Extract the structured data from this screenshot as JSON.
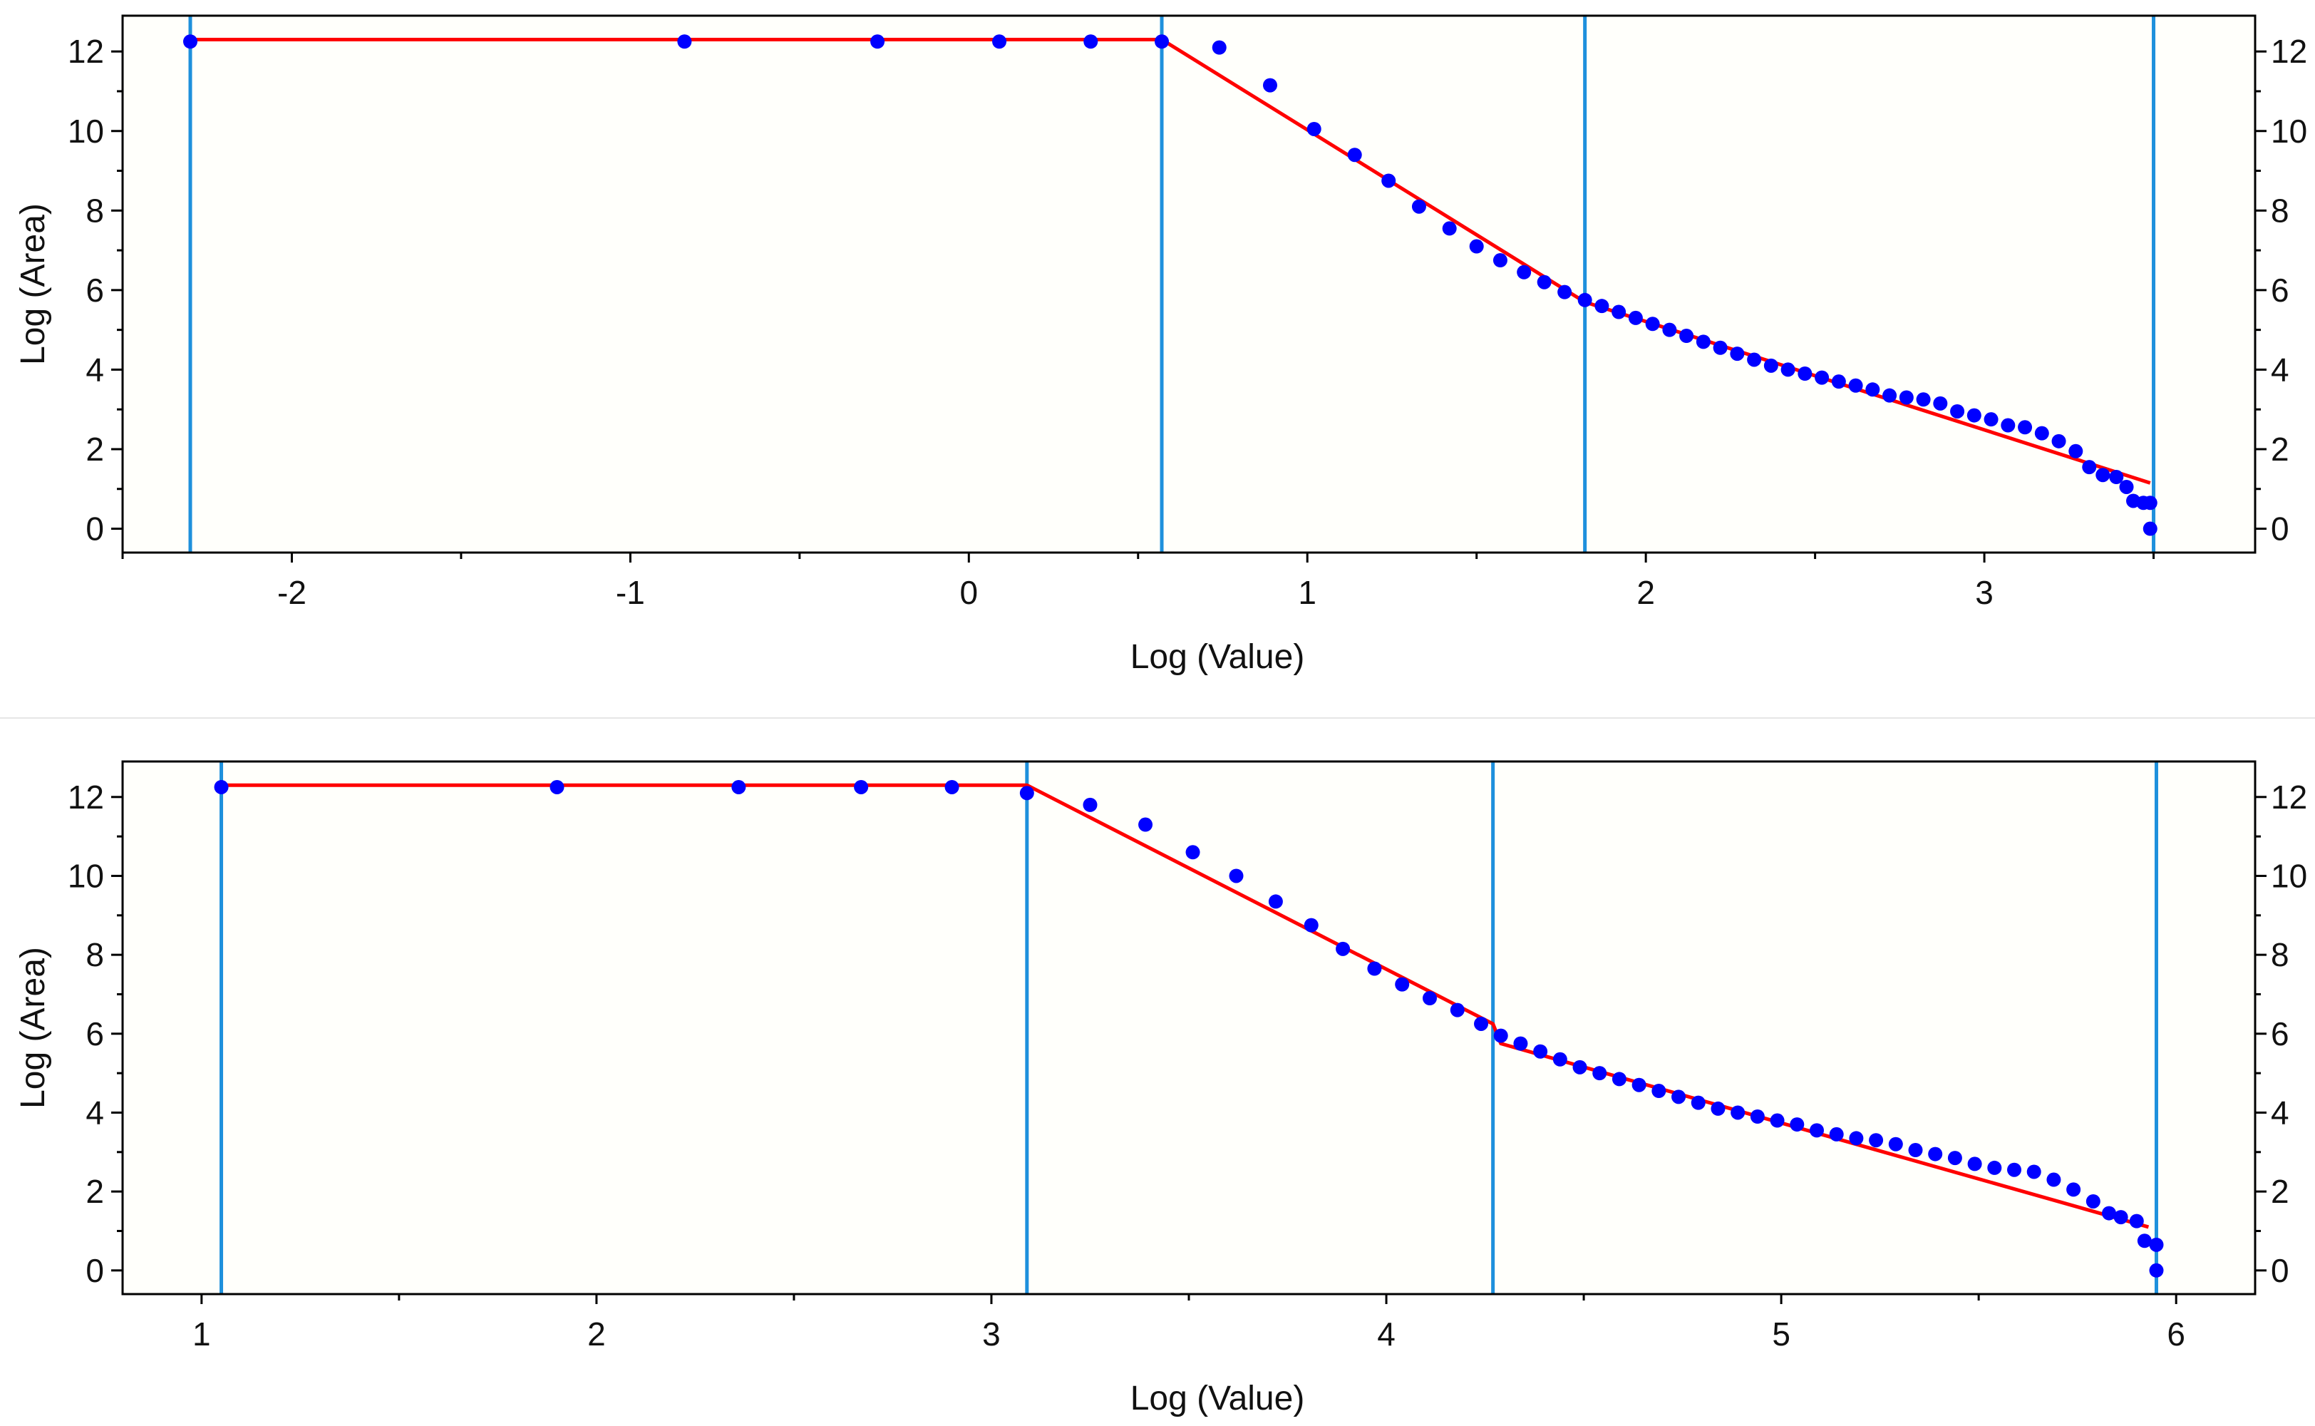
{
  "colors": {
    "plot_bg": "#fffffb",
    "frame": "#000000",
    "points": "#0000ff",
    "fit_line": "#ff0000",
    "vlines": "#1e90dc",
    "divider": "#e6e6e6"
  },
  "chart_data": [
    {
      "type": "scatter",
      "xlabel": "Log (Value)",
      "ylabel": "Log (Area)",
      "xlim": [
        -2.5,
        3.8
      ],
      "ylim": [
        -0.6,
        12.9
      ],
      "xticks": [
        -2,
        -1,
        0,
        1,
        2,
        3
      ],
      "xtick_labels": [
        "-2",
        "-1",
        "0",
        "1",
        "2",
        "3"
      ],
      "yticks": [
        0,
        2,
        4,
        6,
        8,
        10,
        12
      ],
      "ytick_labels": [
        "0",
        "2",
        "4",
        "6",
        "8",
        "10",
        "12"
      ],
      "right_axis_ticks": true,
      "grid": false,
      "vertical_lines": [
        -2.3,
        0.57,
        1.82,
        3.5
      ],
      "fit_line": [
        [
          -2.3,
          12.3
        ],
        [
          0.57,
          12.3
        ],
        [
          1.82,
          5.7
        ],
        [
          3.49,
          1.15
        ]
      ],
      "points": [
        [
          -2.3,
          12.25
        ],
        [
          -0.84,
          12.25
        ],
        [
          -0.27,
          12.25
        ],
        [
          0.09,
          12.25
        ],
        [
          0.36,
          12.25
        ],
        [
          0.57,
          12.25
        ],
        [
          0.74,
          12.1
        ],
        [
          0.89,
          11.15
        ],
        [
          1.02,
          10.05
        ],
        [
          1.14,
          9.4
        ],
        [
          1.24,
          8.75
        ],
        [
          1.33,
          8.1
        ],
        [
          1.42,
          7.55
        ],
        [
          1.5,
          7.1
        ],
        [
          1.57,
          6.75
        ],
        [
          1.64,
          6.45
        ],
        [
          1.7,
          6.2
        ],
        [
          1.76,
          5.95
        ],
        [
          1.82,
          5.75
        ],
        [
          1.87,
          5.6
        ],
        [
          1.92,
          5.45
        ],
        [
          1.97,
          5.3
        ],
        [
          2.02,
          5.15
        ],
        [
          2.07,
          5.0
        ],
        [
          2.12,
          4.85
        ],
        [
          2.17,
          4.7
        ],
        [
          2.22,
          4.55
        ],
        [
          2.27,
          4.4
        ],
        [
          2.32,
          4.25
        ],
        [
          2.37,
          4.1
        ],
        [
          2.42,
          4.0
        ],
        [
          2.47,
          3.9
        ],
        [
          2.52,
          3.8
        ],
        [
          2.57,
          3.7
        ],
        [
          2.62,
          3.6
        ],
        [
          2.67,
          3.5
        ],
        [
          2.72,
          3.35
        ],
        [
          2.77,
          3.3
        ],
        [
          2.82,
          3.25
        ],
        [
          2.87,
          3.15
        ],
        [
          2.92,
          2.95
        ],
        [
          2.97,
          2.85
        ],
        [
          3.02,
          2.75
        ],
        [
          3.07,
          2.6
        ],
        [
          3.12,
          2.55
        ],
        [
          3.17,
          2.4
        ],
        [
          3.22,
          2.2
        ],
        [
          3.27,
          1.95
        ],
        [
          3.31,
          1.55
        ],
        [
          3.35,
          1.35
        ],
        [
          3.39,
          1.3
        ],
        [
          3.42,
          1.05
        ],
        [
          3.44,
          0.7
        ],
        [
          3.47,
          0.65
        ],
        [
          3.49,
          0.65
        ],
        [
          3.49,
          0.0
        ]
      ]
    },
    {
      "type": "scatter",
      "xlabel": "Log (Value)",
      "ylabel": "Log (Area)",
      "xlim": [
        0.8,
        6.2
      ],
      "ylim": [
        -0.6,
        12.9
      ],
      "xticks": [
        1,
        2,
        3,
        4,
        5,
        6
      ],
      "xtick_labels": [
        "1",
        "2",
        "3",
        "4",
        "5",
        "6"
      ],
      "yticks": [
        0,
        2,
        4,
        6,
        8,
        10,
        12
      ],
      "ytick_labels": [
        "0",
        "2",
        "4",
        "6",
        "8",
        "10",
        "12"
      ],
      "right_axis_ticks": true,
      "grid": false,
      "vertical_lines": [
        1.05,
        3.09,
        4.27,
        5.95
      ],
      "fit_line": [
        [
          1.05,
          12.3
        ],
        [
          3.09,
          12.3
        ],
        [
          4.27,
          6.25
        ],
        [
          4.29,
          5.75
        ],
        [
          5.93,
          1.1
        ]
      ],
      "points": [
        [
          1.05,
          12.25
        ],
        [
          1.9,
          12.25
        ],
        [
          2.36,
          12.25
        ],
        [
          2.67,
          12.25
        ],
        [
          2.9,
          12.25
        ],
        [
          3.09,
          12.1
        ],
        [
          3.25,
          11.8
        ],
        [
          3.39,
          11.3
        ],
        [
          3.51,
          10.6
        ],
        [
          3.62,
          10.0
        ],
        [
          3.72,
          9.35
        ],
        [
          3.81,
          8.75
        ],
        [
          3.89,
          8.15
        ],
        [
          3.97,
          7.65
        ],
        [
          4.04,
          7.25
        ],
        [
          4.11,
          6.9
        ],
        [
          4.18,
          6.6
        ],
        [
          4.24,
          6.25
        ],
        [
          4.29,
          5.95
        ],
        [
          4.34,
          5.75
        ],
        [
          4.39,
          5.55
        ],
        [
          4.44,
          5.35
        ],
        [
          4.49,
          5.15
        ],
        [
          4.54,
          5.0
        ],
        [
          4.59,
          4.85
        ],
        [
          4.64,
          4.7
        ],
        [
          4.69,
          4.55
        ],
        [
          4.74,
          4.4
        ],
        [
          4.79,
          4.25
        ],
        [
          4.84,
          4.1
        ],
        [
          4.89,
          4.0
        ],
        [
          4.94,
          3.9
        ],
        [
          4.99,
          3.8
        ],
        [
          5.04,
          3.7
        ],
        [
          5.09,
          3.55
        ],
        [
          5.14,
          3.45
        ],
        [
          5.19,
          3.35
        ],
        [
          5.24,
          3.3
        ],
        [
          5.29,
          3.2
        ],
        [
          5.34,
          3.05
        ],
        [
          5.39,
          2.95
        ],
        [
          5.44,
          2.85
        ],
        [
          5.49,
          2.7
        ],
        [
          5.54,
          2.6
        ],
        [
          5.59,
          2.55
        ],
        [
          5.64,
          2.5
        ],
        [
          5.69,
          2.3
        ],
        [
          5.74,
          2.05
        ],
        [
          5.79,
          1.75
        ],
        [
          5.83,
          1.45
        ],
        [
          5.86,
          1.35
        ],
        [
          5.9,
          1.25
        ],
        [
          5.92,
          0.75
        ],
        [
          5.95,
          0.65
        ],
        [
          5.95,
          0.0
        ]
      ]
    }
  ]
}
